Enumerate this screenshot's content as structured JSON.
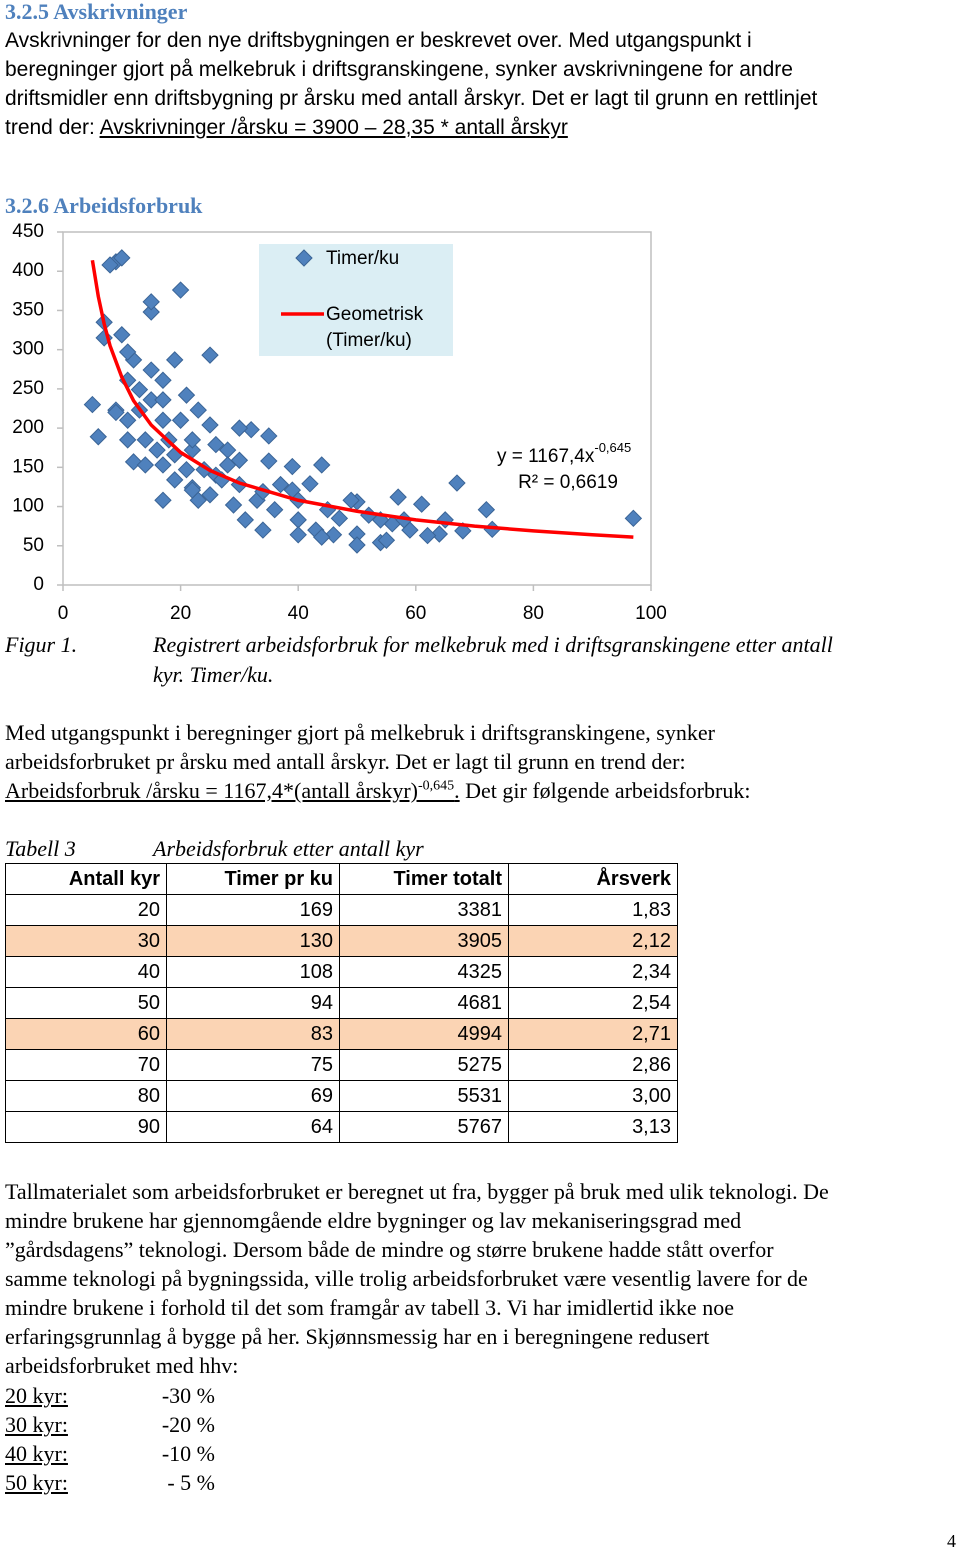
{
  "heading_1": "3.2.5 Avskrivninger",
  "paragraph_1": {
    "lines": [
      "Avskrivninger for den nye driftsbygningen er beskrevet over. Med utgangspunkt i",
      "beregninger gjort på melkebruk i driftsgranskingene, synker avskrivningene for andre",
      "driftsmidler enn driftsbygning pr årsku med antall årskyr. Det er lagt til grunn en rettlinjet"
    ],
    "lead": "trend der: ",
    "formula": "Avskrivninger /årsku = 3900 – 28,35 * antall årskyr"
  },
  "heading_2": "3.2.6 Arbeidsforbruk",
  "chart_data": {
    "type": "scatter",
    "series": [
      {
        "name": "Timer/ku",
        "color": "#4f81bd",
        "marker": "diamond",
        "x": [
          9,
          8,
          10,
          15,
          15,
          20,
          7,
          7,
          10,
          25,
          5,
          6,
          12,
          17,
          97,
          73,
          72,
          67,
          68,
          64,
          62,
          61,
          57,
          56,
          54,
          50,
          50,
          47,
          46,
          44,
          42,
          39,
          35,
          35,
          32,
          30,
          28,
          26,
          23,
          22,
          19,
          18,
          17,
          15,
          13,
          11,
          19,
          21,
          23,
          25,
          28,
          30,
          33,
          36,
          40,
          40,
          43,
          45,
          49,
          52,
          54,
          58,
          59,
          65,
          39,
          37,
          34,
          29,
          27,
          24,
          22,
          21,
          17,
          16,
          14,
          11,
          9,
          13,
          15,
          17,
          12,
          11,
          9,
          11,
          14,
          19,
          22,
          25,
          31,
          34,
          44,
          50,
          55,
          40,
          20,
          17,
          22,
          26,
          30
        ],
        "values": [
          412,
          408,
          417,
          348,
          361,
          376,
          335,
          315,
          319,
          293,
          230,
          189,
          157,
          108,
          85,
          71,
          96,
          130,
          69,
          65,
          63,
          103,
          112,
          78,
          54,
          65,
          106,
          85,
          64,
          153,
          129,
          151,
          158,
          190,
          198,
          200,
          172,
          140,
          108,
          124,
          166,
          185,
          210,
          236,
          249,
          261,
          287,
          242,
          223,
          204,
          153,
          128,
          108,
          96,
          83,
          64,
          70,
          96,
          108,
          89,
          83,
          83,
          70,
          83,
          121,
          128,
          119,
          102,
          134,
          147,
          172,
          147,
          153,
          172,
          185,
          210,
          223,
          223,
          274,
          261,
          287,
          297,
          220,
          185,
          153,
          134,
          121,
          115,
          83,
          70,
          61,
          51,
          57,
          108,
          210,
          236,
          185,
          179,
          159
        ]
      },
      {
        "name": "Geometrisk (Timer/ku)",
        "color": "#ff0000",
        "marker": "line",
        "x": [
          5,
          6,
          7,
          8,
          10,
          12,
          15,
          20,
          25,
          30,
          40,
          50,
          60,
          70,
          80,
          90,
          97
        ],
        "values": [
          414,
          368,
          333,
          305,
          265,
          235,
          204,
          169,
          146,
          130,
          108,
          94,
          83,
          75,
          69,
          64,
          61
        ]
      }
    ],
    "xlim": [
      0,
      100
    ],
    "xticks": [
      0,
      20,
      40,
      60,
      80,
      100
    ],
    "ylim": [
      0,
      450
    ],
    "yticks": [
      0,
      50,
      100,
      150,
      200,
      250,
      300,
      350,
      400,
      450
    ],
    "legend": "top-center",
    "legend_color": "#dbeef4",
    "annotation": {
      "equation": "y = 1167,4x",
      "exponent": "-0,645",
      "r_squared": "R² = 0,6619"
    }
  },
  "figure_caption": {
    "label": "Figur 1.",
    "lines": [
      "Registrert arbeidsforbruk for melkebruk med i driftsgranskingene etter antall",
      "kyr. Timer/ku."
    ]
  },
  "paragraph_2": {
    "lines": [
      "Med utgangspunkt i beregninger gjort på melkebruk i driftsgranskingene, synker",
      "arbeidsforbruket pr årsku med antall årskyr. Det er lagt til grunn en trend der:"
    ],
    "formula": "Arbeidsforbruk /årsku = 1167,4*(antall årskyr)",
    "exponent": "-0,645",
    "end": ".",
    "tail": " Det gir følgende arbeidsforbruk:"
  },
  "table_caption": {
    "label": "Tabell 3",
    "title": "Arbeidsforbruk etter antall kyr"
  },
  "table": {
    "header": [
      "Antall kyr",
      "Timer pr ku",
      "Timer totalt",
      "Årsverk"
    ],
    "rows": [
      [
        "20",
        "169",
        "3381",
        "1,83"
      ],
      [
        "30",
        "130",
        "3905",
        "2,12"
      ],
      [
        "40",
        "108",
        "4325",
        "2,34"
      ],
      [
        "50",
        "94",
        "4681",
        "2,54"
      ],
      [
        "60",
        "83",
        "4994",
        "2,71"
      ],
      [
        "70",
        "75",
        "5275",
        "2,86"
      ],
      [
        "80",
        "69",
        "5531",
        "3,00"
      ],
      [
        "90",
        "64",
        "5767",
        "3,13"
      ]
    ],
    "highlighted_rows": [
      1,
      4
    ],
    "highlight_color": "#fbd4b4"
  },
  "paragraph_3": {
    "lines": [
      "Tallmaterialet som arbeidsforbruket er beregnet ut fra, bygger på bruk med ulik teknologi. De",
      "mindre brukene har gjennomgående eldre bygninger og lav mekaniseringsgrad med",
      "”gårdsdagens” teknologi. Dersom både de mindre og større brukene hadde stått overfor",
      "samme teknologi på bygningssida, ville trolig arbeidsforbruket være vesentlig lavere for de",
      "mindre brukene i forhold til det som framgår av tabell 3. Vi har imidlertid ikke noe",
      "erfaringsgrunnlag å bygge på her. Skjønnsmessig har en i beregningene redusert",
      "arbeidsforbruket med hhv:"
    ]
  },
  "reductions": [
    [
      "20 kyr:",
      "-30 %"
    ],
    [
      "30 kyr:",
      "-20 %"
    ],
    [
      "40 kyr:",
      "-10 %"
    ],
    [
      "50 kyr:",
      "- 5 %"
    ]
  ],
  "page_number": "4"
}
